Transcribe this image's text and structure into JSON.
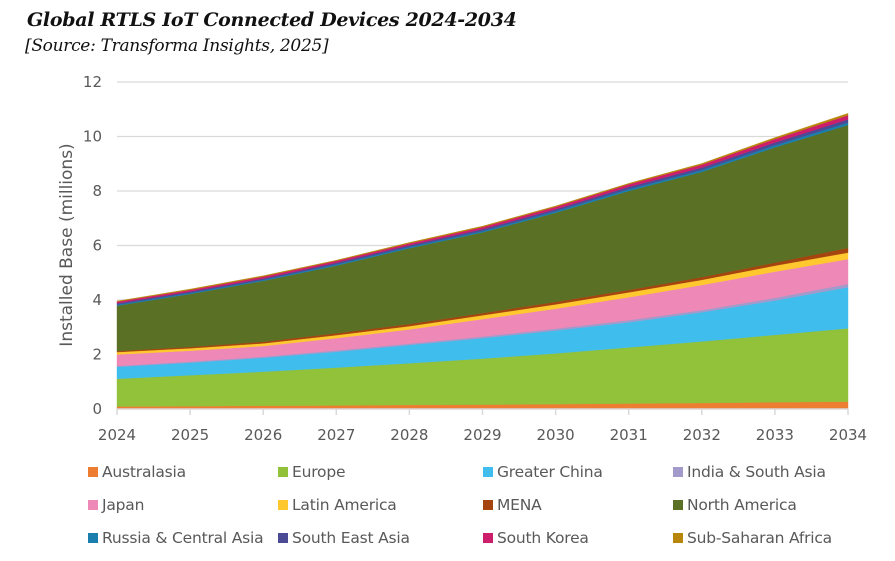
{
  "chart_data": {
    "type": "area",
    "stacked": true,
    "title": "Global RTLS IoT Connected Devices 2024-2034",
    "subtitle": "[Source: Transforma Insights, 2025]",
    "xlabel": "",
    "ylabel": "Installed Base (millions)",
    "ylim": [
      0,
      12
    ],
    "yticks": [
      "0",
      "2",
      "4",
      "6",
      "8",
      "10",
      "12"
    ],
    "ytick_values": [
      0,
      2,
      4,
      6,
      8,
      10,
      12
    ],
    "grid": "horizontal",
    "legend_position": "bottom",
    "categories": [
      "2024",
      "2025",
      "2026",
      "2027",
      "2028",
      "2029",
      "2030",
      "2031",
      "2032",
      "2033",
      "2034"
    ],
    "series": [
      {
        "name": "Australasia",
        "color": "#ED7D31",
        "values": [
          0.09,
          0.1,
          0.12,
          0.13,
          0.15,
          0.16,
          0.18,
          0.2,
          0.22,
          0.25,
          0.27
        ]
      },
      {
        "name": "Europe",
        "color": "#92C13A",
        "values": [
          1.02,
          1.14,
          1.25,
          1.39,
          1.53,
          1.69,
          1.86,
          2.06,
          2.26,
          2.47,
          2.69
        ]
      },
      {
        "name": "Greater China",
        "color": "#3FBDEC",
        "values": [
          0.44,
          0.46,
          0.51,
          0.58,
          0.67,
          0.75,
          0.84,
          0.92,
          1.07,
          1.26,
          1.51
        ]
      },
      {
        "name": "India & South Asia",
        "color": "#A29ACB",
        "values": [
          0.03,
          0.04,
          0.04,
          0.05,
          0.05,
          0.06,
          0.07,
          0.08,
          0.08,
          0.1,
          0.12
        ]
      },
      {
        "name": "Japan",
        "color": "#EE88B6",
        "values": [
          0.42,
          0.4,
          0.39,
          0.45,
          0.52,
          0.64,
          0.73,
          0.84,
          0.92,
          0.96,
          0.91
        ]
      },
      {
        "name": "Latin America",
        "color": "#FFC82E",
        "values": [
          0.09,
          0.09,
          0.1,
          0.11,
          0.12,
          0.14,
          0.16,
          0.18,
          0.19,
          0.22,
          0.24
        ]
      },
      {
        "name": "MENA",
        "color": "#A5440E",
        "values": [
          0.04,
          0.05,
          0.06,
          0.07,
          0.08,
          0.08,
          0.09,
          0.09,
          0.1,
          0.11,
          0.17
        ]
      },
      {
        "name": "North America",
        "color": "#5A7125",
        "values": [
          1.66,
          1.94,
          2.23,
          2.48,
          2.78,
          2.96,
          3.27,
          3.63,
          3.86,
          4.23,
          4.51
        ]
      },
      {
        "name": "Russia & Central Asia",
        "color": "#1A7FAD",
        "values": [
          0.04,
          0.04,
          0.04,
          0.05,
          0.05,
          0.05,
          0.06,
          0.07,
          0.07,
          0.08,
          0.09
        ]
      },
      {
        "name": "South East Asia",
        "color": "#4B4A94",
        "values": [
          0.05,
          0.05,
          0.05,
          0.06,
          0.06,
          0.07,
          0.07,
          0.08,
          0.09,
          0.1,
          0.12
        ]
      },
      {
        "name": "South Korea",
        "color": "#CC1E6B",
        "values": [
          0.06,
          0.06,
          0.07,
          0.07,
          0.07,
          0.08,
          0.09,
          0.1,
          0.11,
          0.13,
          0.15
        ]
      },
      {
        "name": "Sub-Saharan Africa",
        "color": "#B8860B",
        "values": [
          0.02,
          0.03,
          0.03,
          0.02,
          0.03,
          0.03,
          0.03,
          0.03,
          0.04,
          0.05,
          0.07
        ]
      }
    ]
  }
}
